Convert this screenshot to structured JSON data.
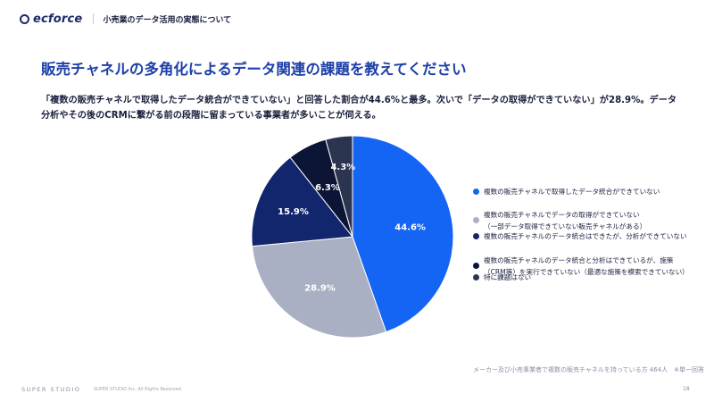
{
  "header": {
    "logo_icon": "circle-logo-icon",
    "logo_text": "ecforce",
    "title": "小売業のデータ活用の実態について"
  },
  "page_title": "販売チャネルの多角化によるデータ関連の課題を教えてください",
  "summary": {
    "line1": "「複数の販売チャネルで取得したデータ統合ができていない」と回答した割合が44.6%と最多。次いで「データの取得ができていない」が28.9%。データ",
    "line2": "分析やその後のCRMに繋がる前の段階に留まっている事業者が多いことが伺える。"
  },
  "chart_data": {
    "type": "pie",
    "title": "",
    "slices": [
      {
        "label": "複数の販売チャネルで取得したデータ統合ができていない",
        "value": 44.6,
        "display": "44.6%",
        "color": "#1565f5"
      },
      {
        "label": "複数の販売チャネルでデータの取得ができていない（一部データ取得できていない販売チャネルがある）",
        "value": 28.9,
        "display": "28.9%",
        "color": "#a9b0c4"
      },
      {
        "label": "複数の販売チャネルのデータ統合はできたが、分析ができていない",
        "value": 15.9,
        "display": "15.9%",
        "color": "#12266e"
      },
      {
        "label": "複数の販売チャネルのデータ統合と分析はできているが、施策（CRM等）を実行できていない（最適な施策を模索できていない）",
        "value": 6.3,
        "display": "6.3%",
        "color": "#0c1536"
      },
      {
        "label": "特に課題はない",
        "value": 4.3,
        "display": "4.3%",
        "color": "#2c3550"
      }
    ],
    "legend_placement": "right"
  },
  "legend": {
    "item1": "複数の販売チャネルで取得したデータ統合ができていない",
    "item2_line1": "複数の販売チャネルでデータの取得ができていない",
    "item2_line2": "（一部データ取得できていない販売チャネルがある）",
    "item3": "複数の販売チャネルのデータ統合はできたが、分析ができていない",
    "item4_line1": "複数の販売チャネルのデータ統合と分析はできているが、施策",
    "item4_line2": "（CRM等）を実行できていない（最適な施策を模索できていない）",
    "item5": "特に課題はない"
  },
  "footnote": "メーカー及び小売事業者で複数の販売チャネルを持っている方 464人　※単一回答",
  "footer": {
    "brand": "SUPER STUDIO",
    "copyright": "SUPER STUDIO Inc. All Rights Reserved.",
    "page_number": "18"
  }
}
